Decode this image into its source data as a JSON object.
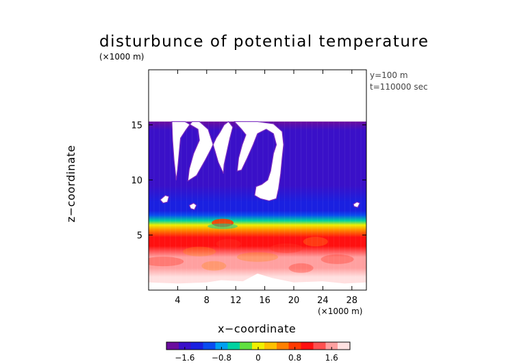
{
  "chart_data": {
    "type": "heatmap",
    "title": "disturbunce of potential temperature",
    "ylabel_units": "(×1000 m)",
    "xlabel": "x−coordinate",
    "xlabel_units": "(×1000 m)",
    "ylabel": "z−coordinate",
    "annotations": [
      "y=100 m",
      "t=110000 sec"
    ],
    "xlim": [
      0,
      30
    ],
    "ylim": [
      0,
      20
    ],
    "x_ticks": [
      4,
      8,
      12,
      16,
      20,
      24,
      28
    ],
    "x_tick_labels": [
      "4",
      "8",
      "12",
      "16",
      "20",
      "24",
      "28"
    ],
    "y_ticks": [
      5,
      10,
      15
    ],
    "y_tick_labels": [
      "5",
      "10",
      "15"
    ],
    "colorbar": {
      "range": [
        -2.0,
        2.0
      ],
      "ticks": [
        -1.6,
        -0.8,
        0,
        0.8,
        1.6
      ],
      "tick_labels": [
        "−1.6",
        "−0.8",
        "0",
        "0.8",
        "1.6"
      ],
      "colors": [
        "#6a0d9e",
        "#3a10c8",
        "#1a20e0",
        "#0a4cf0",
        "#00a0f0",
        "#00d2a0",
        "#60e040",
        "#f0f000",
        "#ffc000",
        "#ff8000",
        "#ff3a00",
        "#ff1010",
        "#ff5050",
        "#ffa0a0",
        "#ffe0e0"
      ]
    },
    "field_top_z": 15.3,
    "profile": [
      {
        "z": 15.3,
        "v": -1.75
      },
      {
        "z": 14.5,
        "v": -1.6
      },
      {
        "z": 12.0,
        "v": -1.55
      },
      {
        "z": 9.5,
        "v": -1.6
      },
      {
        "z": 8.0,
        "v": -1.45
      },
      {
        "z": 7.2,
        "v": -1.3
      },
      {
        "z": 6.8,
        "v": -1.0
      },
      {
        "z": 6.3,
        "v": -0.5
      },
      {
        "z": 5.9,
        "v": 0.0
      },
      {
        "z": 5.4,
        "v": 0.6
      },
      {
        "z": 4.8,
        "v": 0.95
      },
      {
        "z": 4.0,
        "v": 1.15
      },
      {
        "z": 3.0,
        "v": 1.5
      },
      {
        "z": 2.0,
        "v": 1.65
      },
      {
        "z": 1.2,
        "v": 1.85
      },
      {
        "z": 0.5,
        "v": 1.95
      }
    ],
    "undefined_regions": [
      {
        "name": "top-left-intrusion",
        "points": [
          [
            3.2,
            15.3
          ],
          [
            5.0,
            15.3
          ],
          [
            6.8,
            14.6
          ],
          [
            7.0,
            13.6
          ],
          [
            6.2,
            12.4
          ],
          [
            5.6,
            11.0
          ],
          [
            5.4,
            9.9
          ],
          [
            6.6,
            10.4
          ],
          [
            7.8,
            11.8
          ],
          [
            8.6,
            12.8
          ],
          [
            9.3,
            13.8
          ],
          [
            9.8,
            14.3
          ],
          [
            10.4,
            15.0
          ],
          [
            11.0,
            15.3
          ],
          [
            11.6,
            14.8
          ],
          [
            11.2,
            13.8
          ],
          [
            10.8,
            12.6
          ],
          [
            10.4,
            11.4
          ],
          [
            10.3,
            10.6
          ],
          [
            9.6,
            11.6
          ],
          [
            8.8,
            13.4
          ],
          [
            8.2,
            14.6
          ],
          [
            7.0,
            15.3
          ],
          [
            6.0,
            15.3
          ],
          [
            5.2,
            14.6
          ],
          [
            4.4,
            13.8
          ],
          [
            4.2,
            12.4
          ],
          [
            4.0,
            11.0
          ],
          [
            3.8,
            10.0
          ],
          [
            3.5,
            11.8
          ],
          [
            3.3,
            13.6
          ]
        ]
      },
      {
        "name": "center-hook",
        "points": [
          [
            11.8,
            15.3
          ],
          [
            15.0,
            15.3
          ],
          [
            17.2,
            15.1
          ],
          [
            18.4,
            14.4
          ],
          [
            18.6,
            13.2
          ],
          [
            18.4,
            12.0
          ],
          [
            18.2,
            10.6
          ],
          [
            17.9,
            9.2
          ],
          [
            17.6,
            8.3
          ],
          [
            16.6,
            8.1
          ],
          [
            15.4,
            8.3
          ],
          [
            14.6,
            8.6
          ],
          [
            14.8,
            9.4
          ],
          [
            15.6,
            9.6
          ],
          [
            16.4,
            10.0
          ],
          [
            16.8,
            10.8
          ],
          [
            17.2,
            12.4
          ],
          [
            17.6,
            13.2
          ],
          [
            17.2,
            14.2
          ],
          [
            16.2,
            14.6
          ],
          [
            15.0,
            14.2
          ],
          [
            14.4,
            13.2
          ],
          [
            13.6,
            12.0
          ],
          [
            12.8,
            10.9
          ],
          [
            12.2,
            10.8
          ],
          [
            12.4,
            12.0
          ],
          [
            12.9,
            13.2
          ],
          [
            13.4,
            14.1
          ],
          [
            12.8,
            14.6
          ]
        ]
      },
      {
        "name": "small-blob-left",
        "points": [
          [
            1.6,
            8.2
          ],
          [
            2.3,
            8.6
          ],
          [
            2.8,
            8.5
          ],
          [
            2.6,
            8.0
          ],
          [
            2.0,
            7.9
          ]
        ]
      },
      {
        "name": "small-blob-2",
        "points": [
          [
            5.6,
            7.7
          ],
          [
            6.2,
            7.9
          ],
          [
            6.6,
            7.7
          ],
          [
            6.3,
            7.3
          ],
          [
            5.8,
            7.4
          ]
        ]
      },
      {
        "name": "small-blob-right",
        "points": [
          [
            28.2,
            7.8
          ],
          [
            28.7,
            8.0
          ],
          [
            29.1,
            7.9
          ],
          [
            28.8,
            7.5
          ],
          [
            28.3,
            7.6
          ]
        ]
      }
    ]
  }
}
